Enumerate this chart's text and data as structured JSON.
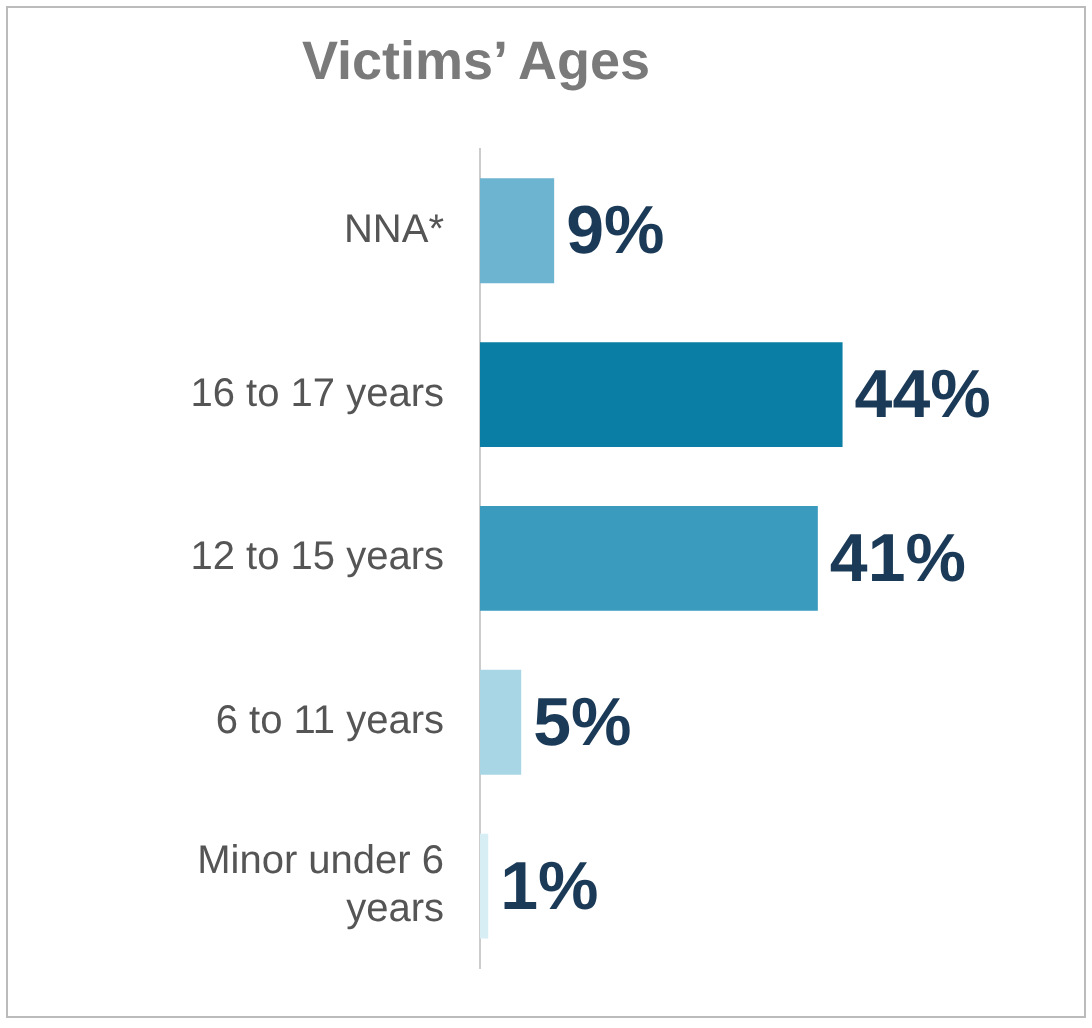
{
  "chart_data": {
    "type": "bar",
    "orientation": "horizontal",
    "title": "Victims’ Ages",
    "categories": [
      "NNA*",
      "16 to 17 years",
      "12 to 15 years",
      "6 to 11 years",
      "Minor under 6 years"
    ],
    "values": [
      9,
      44,
      41,
      5,
      1
    ],
    "colors": [
      "#6cb4d0",
      "#0a7ea4",
      "#3a9bbf",
      "#a9d6e5",
      "#d8eef5"
    ],
    "value_labels": [
      "9%",
      "44%",
      "41%",
      "5%",
      "1%"
    ],
    "legend": false,
    "grid": false,
    "tick_labels": "y"
  }
}
